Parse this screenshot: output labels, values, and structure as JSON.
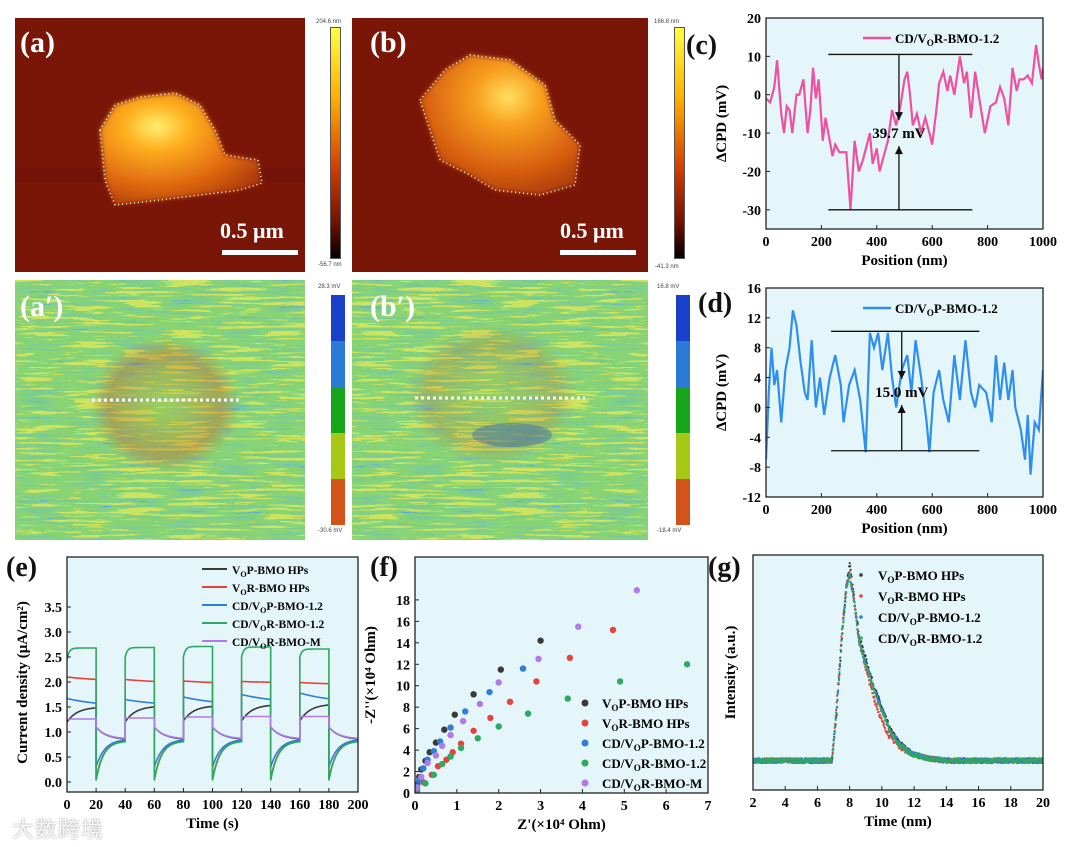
{
  "figure": {
    "panel_labels": {
      "a": "(a)",
      "b": "(b)",
      "a2": "(a′)",
      "b2": "(b′)",
      "c": "(c)",
      "d": "(d)",
      "e": "(e)",
      "f": "(f)",
      "g": "(g)"
    },
    "afm": {
      "a": {
        "scale_bar": "0.5 μm",
        "cbar_max": "204.6 nm",
        "cbar_min": "-56.7 nm"
      },
      "b": {
        "scale_bar": "0.5 μm",
        "cbar_max": "166.8 nm",
        "cbar_min": "-41.3 nm"
      },
      "a2": {
        "cbar_max": "28.3 mV",
        "cbar_min": "-30.6 mV"
      },
      "b2": {
        "cbar_max": "16.8 mV",
        "cbar_min": "-18.4 mV"
      }
    },
    "kpfm_colors": [
      "#1a3fc8",
      "#2b7bd6",
      "#18a51c",
      "#a8c818",
      "#d2541a"
    ],
    "height_colors": [
      "#ffff40",
      "#ffb000",
      "#e05000",
      "#901000",
      "#000000"
    ],
    "watermark": "大数跨境"
  },
  "chart_data": [
    {
      "id": "c",
      "type": "line",
      "xlabel": "Position (nm)",
      "ylabel": "ΔCPD (mV)",
      "xlim": [
        0,
        1000
      ],
      "ylim": [
        -35,
        20
      ],
      "xticks": [
        0,
        200,
        400,
        600,
        800,
        1000
      ],
      "yticks": [
        -30,
        -20,
        -10,
        0,
        10,
        20
      ],
      "legend": "top-right",
      "annotation": {
        "text": "39.7 mV",
        "top": 10.5,
        "bottom": -30,
        "x_from": 225,
        "x_to": 745,
        "arrow_x": 480
      },
      "series": [
        {
          "name": "CD/VOR-BMO-1.2",
          "color": "#f0509f",
          "x": [
            0,
            15,
            30,
            40,
            55,
            65,
            75,
            85,
            95,
            110,
            120,
            135,
            150,
            160,
            170,
            180,
            190,
            205,
            215,
            225,
            240,
            250,
            265,
            290,
            305,
            320,
            335,
            350,
            375,
            385,
            400,
            410,
            425,
            440,
            455,
            470,
            485,
            500,
            510,
            520,
            530,
            545,
            560,
            575,
            590,
            600,
            615,
            625,
            640,
            655,
            665,
            680,
            700,
            715,
            725,
            740,
            755,
            770,
            790,
            810,
            830,
            845,
            860,
            875,
            890,
            905,
            915,
            930,
            945,
            960,
            975,
            985,
            995,
            1000
          ],
          "y": [
            -1,
            -2,
            2,
            9,
            -5,
            -10,
            -3,
            -4,
            -10,
            0,
            0,
            4,
            -10,
            -4,
            7,
            -1,
            4,
            -12,
            -6,
            -10,
            -16,
            -13,
            -15,
            -15,
            -30,
            -12,
            -20,
            -17,
            -10,
            -18,
            -14,
            -20,
            -16,
            -12,
            -4,
            -8,
            -3,
            4,
            6,
            0,
            -8,
            -5,
            -10,
            -6,
            -10,
            -13,
            -4,
            3,
            6,
            1,
            5,
            0,
            10,
            3,
            6,
            -6,
            6,
            -1,
            -10,
            -3,
            -2,
            2,
            -1,
            -8,
            7,
            1,
            4,
            4,
            5,
            3,
            13,
            8,
            4,
            7
          ]
        }
      ]
    },
    {
      "id": "d",
      "type": "line",
      "xlabel": "Position (nm)",
      "ylabel": "ΔCPD (mV)",
      "xlim": [
        0,
        1000
      ],
      "ylim": [
        -12,
        16
      ],
      "xticks": [
        0,
        200,
        400,
        600,
        800,
        1000
      ],
      "yticks": [
        -12,
        -8,
        -4,
        0,
        4,
        8,
        12,
        16
      ],
      "legend": "top-right",
      "annotation": {
        "text": "15.0 mV",
        "top": 10.2,
        "bottom": -5.8,
        "x_from": 235,
        "x_to": 770,
        "arrow_x": 490
      },
      "series": [
        {
          "name": "CD/VOP-BMO-1.2",
          "color": "#2e8ff0",
          "x": [
            0,
            10,
            20,
            30,
            40,
            55,
            70,
            85,
            97,
            110,
            125,
            140,
            150,
            165,
            180,
            195,
            210,
            230,
            250,
            270,
            280,
            300,
            320,
            340,
            360,
            375,
            390,
            405,
            420,
            440,
            455,
            470,
            490,
            510,
            525,
            540,
            560,
            580,
            590,
            605,
            625,
            640,
            660,
            680,
            700,
            720,
            740,
            755,
            770,
            795,
            815,
            830,
            845,
            860,
            875,
            890,
            900,
            920,
            935,
            945,
            955,
            970,
            985,
            1000
          ],
          "y": [
            -7,
            2,
            8,
            3,
            5,
            -2,
            5,
            8,
            13,
            11,
            6,
            2,
            1,
            9,
            0,
            4,
            -1,
            4,
            7,
            3,
            -2,
            3,
            5,
            1,
            -6,
            10,
            8,
            10,
            5,
            10,
            4,
            0,
            5,
            7,
            2,
            9,
            4,
            -2,
            -6,
            2,
            5,
            1,
            -2,
            7,
            1,
            9,
            2,
            0,
            3,
            2,
            -2,
            7,
            1,
            6,
            1,
            5,
            0,
            -3,
            -7,
            -1,
            -9,
            -2,
            -3,
            5
          ]
        }
      ]
    },
    {
      "id": "e",
      "type": "line",
      "xlabel": "Time (s)",
      "ylabel": "Current density (μA/cm²)",
      "xlim": [
        0,
        200
      ],
      "ylim": [
        -0.2,
        4.5
      ],
      "xticks": [
        0,
        20,
        40,
        60,
        80,
        100,
        120,
        140,
        160,
        180,
        200
      ],
      "yticks": [
        0.0,
        0.5,
        1.0,
        1.5,
        2.0,
        2.5,
        3.0,
        3.5
      ],
      "ytick_labels": [
        "0.0",
        "0.5",
        "1.0",
        "1.5",
        "2.0",
        "2.5",
        "3.0",
        "3.5"
      ],
      "xtick_labels": [
        "0",
        "20",
        "40",
        "60",
        "80",
        "100",
        "120",
        "140",
        "160",
        "180",
        "200"
      ],
      "legend": "top-right",
      "light_on_intervals": [
        [
          0,
          20
        ],
        [
          40,
          60
        ],
        [
          80,
          100
        ],
        [
          120,
          140
        ],
        [
          160,
          180
        ]
      ],
      "series": [
        {
          "name": "VOP-BMO HPs",
          "color": "#3a3a3a",
          "on": [
            [
              1.2,
              1.5
            ],
            [
              1.2,
              1.52
            ],
            [
              1.22,
              1.53
            ],
            [
              1.22,
              1.55
            ],
            [
              1.22,
              1.56
            ]
          ],
          "on_tau": 7,
          "off": [
            1.1,
            0.85
          ],
          "off_tau": 7
        },
        {
          "name": "VOR-BMO HPs",
          "color": "#e8413c",
          "on": [
            [
              2.1,
              2.0
            ],
            [
              2.05,
              1.97
            ],
            [
              2.02,
              1.96
            ],
            [
              2.01,
              1.98
            ],
            [
              1.99,
              1.94
            ]
          ],
          "on_tau": 30,
          "off": [
            0.05,
            0.83
          ],
          "off_tau": 5
        },
        {
          "name": "CD/VOP-BMO-1.2",
          "color": "#2f7fd8",
          "on": [
            [
              1.67,
              1.5
            ],
            [
              1.65,
              1.52
            ],
            [
              1.7,
              1.53
            ],
            [
              1.75,
              1.57
            ],
            [
              1.78,
              1.57
            ]
          ],
          "on_tau": 25,
          "off": [
            0.3,
            0.86
          ],
          "off_tau": 6
        },
        {
          "name": "CD/VOR-BMO-1.2",
          "color": "#2fa860",
          "on": [
            [
              2.45,
              2.68
            ],
            [
              2.5,
              2.69
            ],
            [
              2.5,
              2.71
            ],
            [
              2.5,
              2.7
            ],
            [
              2.5,
              2.66
            ]
          ],
          "on_tau": 1.5,
          "off": [
            0.03,
            0.82
          ],
          "off_tau": 5
        },
        {
          "name": "CD/VOR-BMO-M",
          "color": "#b07ae8",
          "on": [
            [
              1.25,
              1.26
            ],
            [
              1.27,
              1.28
            ],
            [
              1.28,
              1.3
            ],
            [
              1.29,
              1.31
            ],
            [
              1.3,
              1.31
            ]
          ],
          "on_tau": 1,
          "off": [
            1.1,
            0.86
          ],
          "off_tau": 7
        }
      ]
    },
    {
      "id": "f",
      "type": "scatter",
      "xlabel": "Z'(×10⁴ Ohm)",
      "ylabel": "-Z''(×10⁴ Ohm)",
      "xlim": [
        0,
        7
      ],
      "ylim": [
        0,
        22
      ],
      "xticks": [
        0,
        1,
        2,
        3,
        4,
        5,
        6,
        7
      ],
      "yticks": [
        0,
        2,
        4,
        6,
        8,
        10,
        12,
        14,
        16,
        18
      ],
      "legend": "bottom-right",
      "series": [
        {
          "name": "VOP-BMO HPs",
          "color": "#3a3a3a",
          "x": [
            0,
            0.05,
            0.1,
            0.15,
            0.25,
            0.35,
            0.5,
            0.7,
            0.95,
            1.4,
            2.05,
            3.0
          ],
          "y": [
            0,
            0.8,
            1.5,
            2.2,
            3,
            3.8,
            4.7,
            5.9,
            7.3,
            9.2,
            11.5,
            14.2
          ]
        },
        {
          "name": "VOR-BMO HPs",
          "color": "#e8413c",
          "x": [
            0.05,
            0.2,
            0.4,
            0.55,
            0.75,
            0.9,
            1.1,
            1.4,
            1.8,
            2.27,
            2.9,
            3.7,
            4.73
          ],
          "y": [
            0.3,
            1,
            1.7,
            2.5,
            3.1,
            3.8,
            4.6,
            5.8,
            7.0,
            8.5,
            10.4,
            12.6,
            15.2
          ]
        },
        {
          "name": "CD/VOP-BMO-1.2",
          "color": "#2f7fd8",
          "x": [
            0.05,
            0.1,
            0.2,
            0.3,
            0.45,
            0.6,
            0.85,
            1.2,
            1.78,
            2.58
          ],
          "y": [
            0.6,
            1.2,
            2.3,
            3.1,
            3.9,
            4.8,
            6.1,
            7.6,
            9.4,
            11.6
          ]
        },
        {
          "name": "CD/VOR-BMO-1.2",
          "color": "#2fa860",
          "x": [
            0.05,
            0.25,
            0.45,
            0.65,
            0.85,
            1.1,
            1.5,
            2.0,
            2.7,
            3.65,
            4.9,
            6.5
          ],
          "y": [
            0.2,
            0.9,
            1.7,
            2.7,
            3.4,
            4.2,
            5.1,
            6.2,
            7.4,
            8.8,
            10.4,
            12.0
          ]
        },
        {
          "name": "CD/VOR-BMO-M",
          "color": "#b07ae8",
          "x": [
            0.05,
            0.15,
            0.3,
            0.5,
            0.65,
            0.85,
            1.15,
            1.55,
            2.0,
            2.95,
            3.9,
            5.3
          ],
          "y": [
            0.5,
            1.5,
            2.8,
            3.5,
            4.4,
            5.4,
            6.7,
            8.3,
            10.3,
            12.5,
            15.5,
            18.9
          ]
        }
      ]
    },
    {
      "id": "g",
      "type": "scatter",
      "xlabel": "Time (nm)",
      "ylabel": "Intensity (a.u.)",
      "xlim": [
        2,
        20
      ],
      "ylim": [
        -0.15,
        1.05
      ],
      "xticks": [
        2,
        4,
        6,
        8,
        10,
        12,
        14,
        16,
        18,
        20
      ],
      "yticks": [],
      "legend": "top-right",
      "x": [
        2,
        6.9,
        7.2,
        7.5,
        7.8,
        8.0,
        8.3,
        8.6,
        9,
        9.5,
        10,
        10.5,
        11,
        11.5,
        12,
        13,
        14,
        16,
        20
      ],
      "series": [
        {
          "name": "VOP-BMO HPs",
          "color": "#3a3a3a",
          "y": [
            0,
            0,
            0.25,
            0.6,
            0.9,
            1.0,
            0.82,
            0.63,
            0.52,
            0.38,
            0.27,
            0.16,
            0.1,
            0.06,
            0.03,
            0.01,
            0,
            0,
            0
          ]
        },
        {
          "name": "VOR-BMO HPs",
          "color": "#e8413c",
          "y": [
            0,
            0,
            0.3,
            0.65,
            0.9,
            0.96,
            0.8,
            0.6,
            0.47,
            0.32,
            0.2,
            0.12,
            0.08,
            0.05,
            0.03,
            0.01,
            0,
            0,
            0
          ]
        },
        {
          "name": "CD/VOP-BMO-1.2",
          "color": "#2f7fd8",
          "y": [
            0,
            0,
            0.27,
            0.62,
            0.88,
            0.95,
            0.8,
            0.6,
            0.5,
            0.37,
            0.26,
            0.15,
            0.1,
            0.06,
            0.03,
            0.01,
            0,
            0,
            0
          ]
        },
        {
          "name": "CD/VOR-BMO-1.2",
          "color": "#2fa860",
          "y": [
            0,
            0,
            0.26,
            0.62,
            0.88,
            0.95,
            0.8,
            0.6,
            0.5,
            0.36,
            0.25,
            0.15,
            0.09,
            0.05,
            0.03,
            0.01,
            0,
            0,
            0
          ]
        }
      ]
    }
  ]
}
